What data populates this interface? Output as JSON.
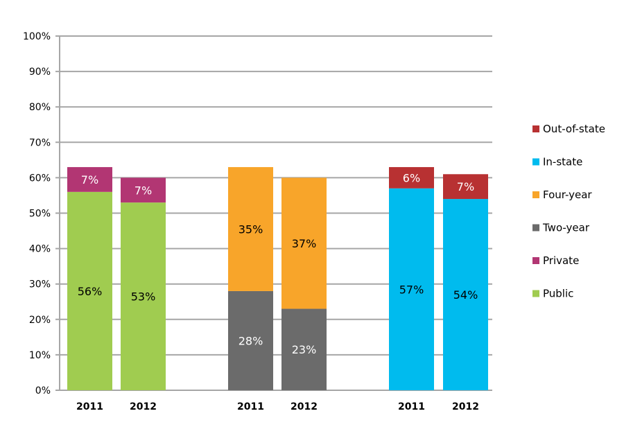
{
  "chart_data": {
    "type": "bar",
    "stacked": true,
    "title": "",
    "xlabel": "",
    "ylabel": "",
    "ylim": [
      0,
      100
    ],
    "yticks": [
      "0%",
      "10%",
      "20%",
      "30%",
      "40%",
      "50%",
      "60%",
      "70%",
      "80%",
      "90%",
      "100%"
    ],
    "grid": true,
    "legend_position": "right",
    "groups": [
      {
        "categories": [
          "2011",
          "2012"
        ],
        "series": [
          {
            "name": "Public",
            "color": "#A0CC50",
            "label_color": "#000000",
            "values": [
              56,
              53
            ]
          },
          {
            "name": "Private",
            "color": "#B23673",
            "label_color": "#FFFFFF",
            "values": [
              7,
              7
            ]
          }
        ]
      },
      {
        "categories": [
          "2011",
          "2012"
        ],
        "series": [
          {
            "name": "Two-year",
            "color": "#6B6B6B",
            "label_color": "#FFFFFF",
            "values": [
              28,
              23
            ]
          },
          {
            "name": "Four-year",
            "color": "#F8A52A",
            "label_color": "#000000",
            "values": [
              35,
              37
            ]
          }
        ]
      },
      {
        "categories": [
          "2011",
          "2012"
        ],
        "series": [
          {
            "name": "In-state",
            "color": "#00BBEE",
            "label_color": "#000000",
            "values": [
              57,
              54
            ]
          },
          {
            "name": "Out-of-state",
            "color": "#B83132",
            "label_color": "#FFFFFF",
            "values": [
              6,
              7
            ]
          }
        ]
      }
    ],
    "legend": [
      "Out-of-state",
      "In-state",
      "Four-year",
      "Two-year",
      "Private",
      "Public"
    ]
  }
}
